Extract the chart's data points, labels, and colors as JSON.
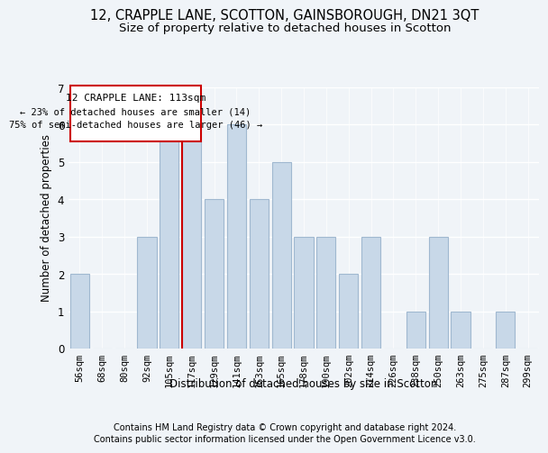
{
  "title1": "12, CRAPPLE LANE, SCOTTON, GAINSBOROUGH, DN21 3QT",
  "title2": "Size of property relative to detached houses in Scotton",
  "xlabel": "Distribution of detached houses by size in Scotton",
  "ylabel": "Number of detached properties",
  "footnote1": "Contains HM Land Registry data © Crown copyright and database right 2024.",
  "footnote2": "Contains public sector information licensed under the Open Government Licence v3.0.",
  "annotation_line1": "12 CRAPPLE LANE: 113sqm",
  "annotation_line2": "← 23% of detached houses are smaller (14)",
  "annotation_line3": "75% of semi-detached houses are larger (46) →",
  "bar_labels": [
    "56sqm",
    "68sqm",
    "80sqm",
    "92sqm",
    "105sqm",
    "117sqm",
    "129sqm",
    "141sqm",
    "153sqm",
    "165sqm",
    "178sqm",
    "190sqm",
    "202sqm",
    "214sqm",
    "226sqm",
    "238sqm",
    "250sqm",
    "263sqm",
    "275sqm",
    "287sqm",
    "299sqm"
  ],
  "bar_values": [
    2,
    0,
    0,
    3,
    6,
    6,
    4,
    6,
    4,
    5,
    3,
    3,
    2,
    3,
    0,
    1,
    3,
    1,
    0,
    1,
    0
  ],
  "bar_color": "#c8d8e8",
  "bar_edgecolor": "#a0b8d0",
  "vline_color": "#cc0000",
  "annotation_box_color": "#cc0000",
  "background_color": "#f0f4f8",
  "ylim": [
    0,
    7
  ],
  "yticks": [
    0,
    1,
    2,
    3,
    4,
    5,
    6,
    7
  ],
  "grid_color": "#ffffff",
  "title_fontsize": 10.5,
  "subtitle_fontsize": 9.5,
  "axis_label_fontsize": 8.5,
  "tick_fontsize": 7.5,
  "footnote_fontsize": 7
}
